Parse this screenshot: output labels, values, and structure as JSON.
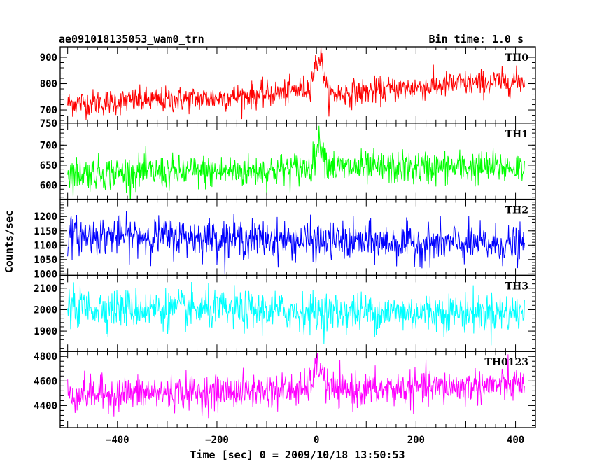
{
  "chart_data": {
    "type": "line",
    "title": "ae091018135053_wam0_trn",
    "subtitle": "Bin time: 1.0 s",
    "xlabel": "Time [sec] 0 = 2009/10/18 13:50:53",
    "ylabel": "Counts/sec",
    "xlim": [
      -515,
      440
    ],
    "xticks": [
      -400,
      -200,
      0,
      200,
      400
    ],
    "x_start": -500,
    "x_end": 418,
    "bin_time": 1.0,
    "grid": false,
    "legend": "none",
    "panels": [
      {
        "name": "TH0",
        "color": "#ff0000",
        "ylim": [
          650,
          940
        ],
        "yticks": [
          700,
          800,
          900
        ],
        "min_label": "750",
        "baseline": [
          [
            -500,
            725
          ],
          [
            -200,
            745
          ],
          [
            -60,
            765
          ],
          [
            -15,
            785
          ],
          [
            0,
            880
          ],
          [
            8,
            905
          ],
          [
            14,
            850
          ],
          [
            22,
            760
          ],
          [
            40,
            760
          ],
          [
            100,
            770
          ],
          [
            200,
            785
          ],
          [
            300,
            800
          ],
          [
            418,
            810
          ]
        ],
        "noise_sd": 25
      },
      {
        "name": "TH1",
        "color": "#00ff00",
        "ylim": [
          565,
          755
        ],
        "yticks": [
          600,
          650,
          700
        ],
        "baseline": [
          [
            -500,
            630
          ],
          [
            -100,
            635
          ],
          [
            -10,
            645
          ],
          [
            0,
            690
          ],
          [
            8,
            710
          ],
          [
            20,
            660
          ],
          [
            40,
            642
          ],
          [
            418,
            645
          ]
        ],
        "noise_sd": 21
      },
      {
        "name": "TH2",
        "color": "#0000ff",
        "ylim": [
          995,
          1260
        ],
        "yticks": [
          1000,
          1050,
          1100,
          1150,
          1200
        ],
        "baseline": [
          [
            -500,
            1135
          ],
          [
            -300,
            1130
          ],
          [
            -100,
            1120
          ],
          [
            100,
            1110
          ],
          [
            418,
            1100
          ]
        ],
        "noise_sd": 33
      },
      {
        "name": "TH3",
        "color": "#00ffff",
        "ylim": [
          1805,
          2160
        ],
        "yticks": [
          1900,
          2000,
          2100
        ],
        "baseline": [
          [
            -500,
            2010
          ],
          [
            0,
            1990
          ],
          [
            418,
            1985
          ]
        ],
        "noise_sd": 45
      },
      {
        "name": "TH0123",
        "color": "#ff00ff",
        "ylim": [
          4220,
          4840
        ],
        "yticks": [
          4400,
          4600,
          4800
        ],
        "baseline": [
          [
            -500,
            4490
          ],
          [
            -200,
            4510
          ],
          [
            -20,
            4530
          ],
          [
            0,
            4690
          ],
          [
            8,
            4730
          ],
          [
            20,
            4560
          ],
          [
            40,
            4520
          ],
          [
            200,
            4540
          ],
          [
            418,
            4570
          ]
        ],
        "noise_sd": 70
      }
    ]
  }
}
